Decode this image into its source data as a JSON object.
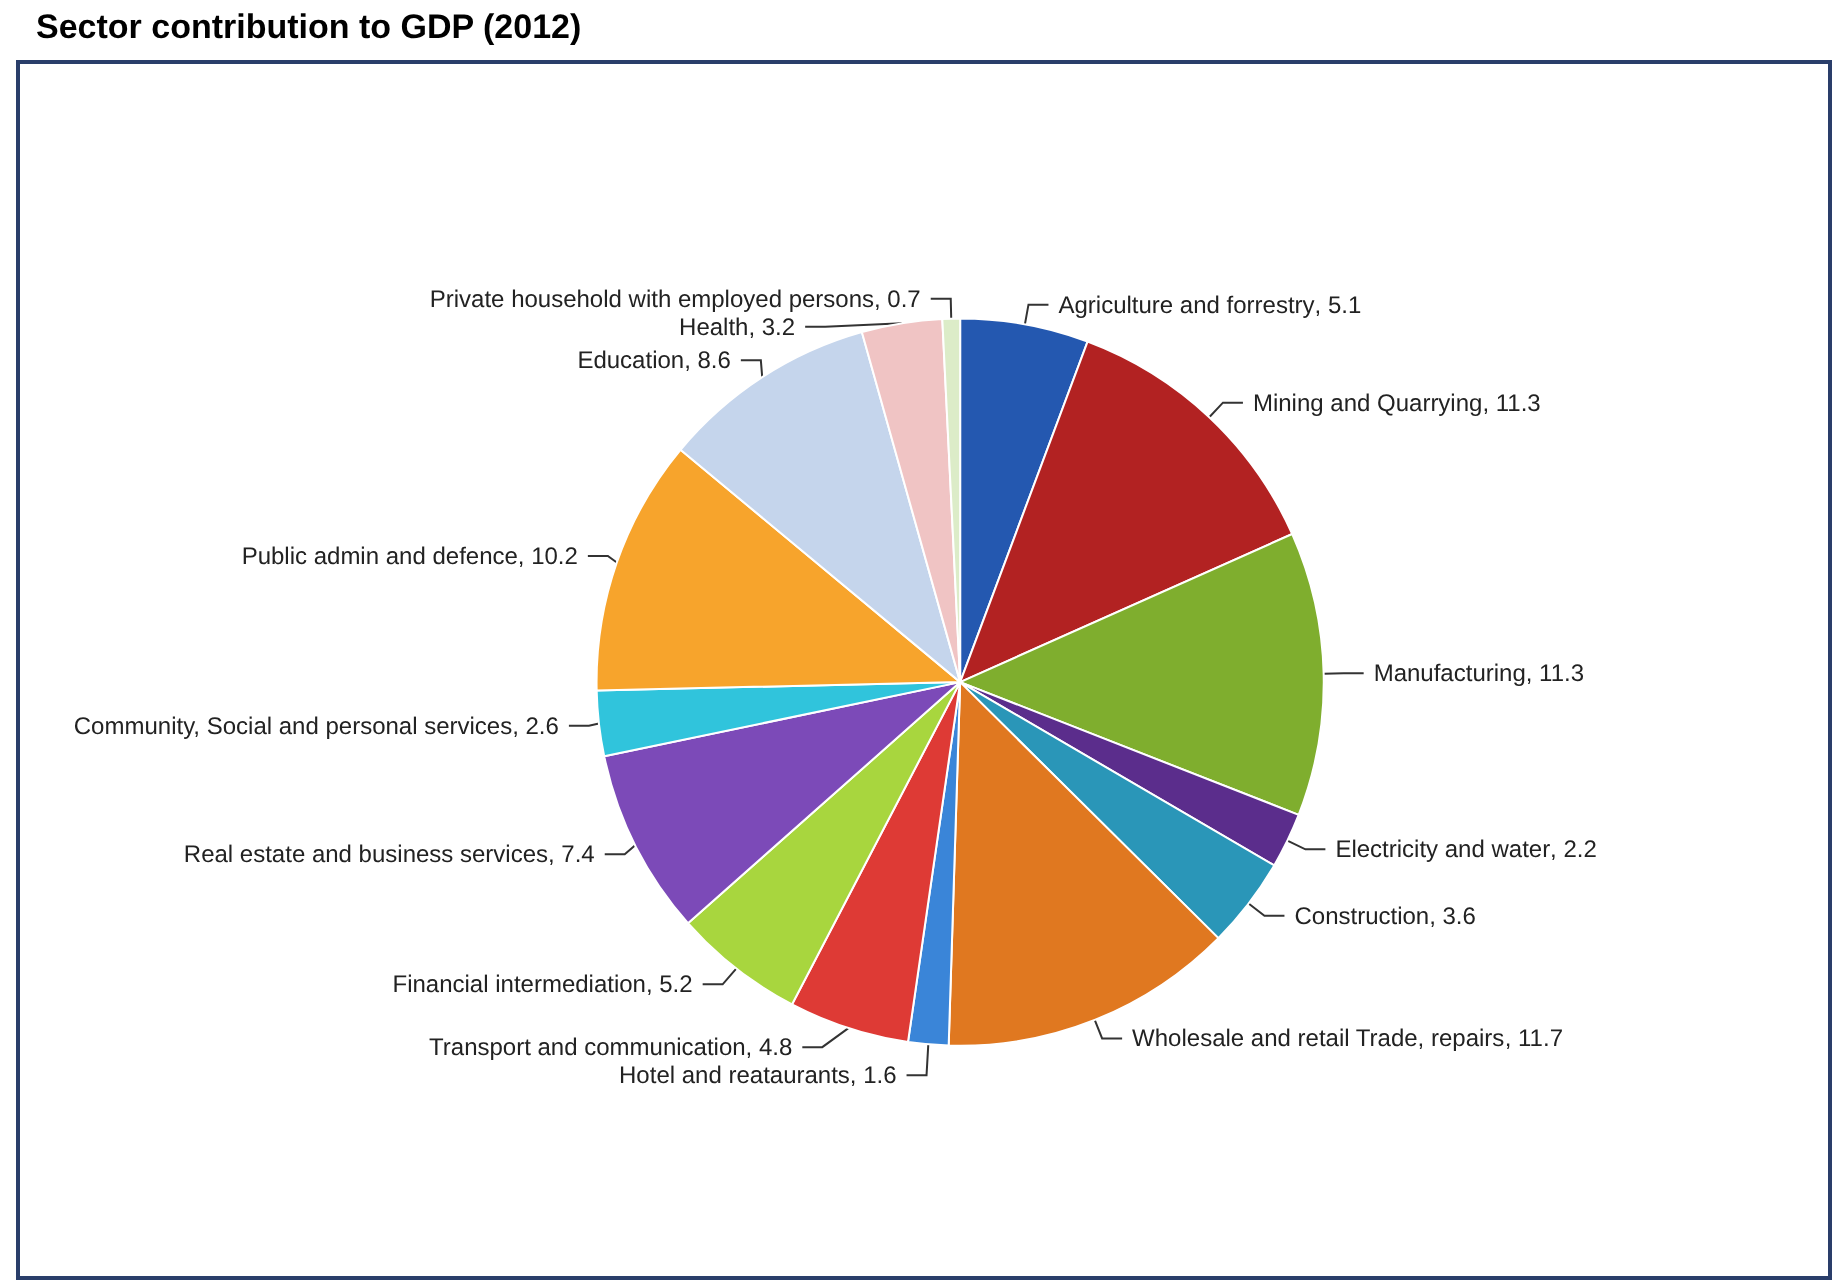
{
  "chart_data": {
    "type": "pie",
    "title": "Sector contribution to GDP (2012)",
    "categories": [
      "Agriculture and forrestry",
      "Mining and Quarrying",
      "Manufacturing",
      "Electricity and water",
      "Construction",
      "Wholesale and retail Trade, repairs",
      "Hotel and reataurants",
      "Transport and communication",
      "Financial intermediation",
      "Real estate and business services",
      "Community, Social and personal services",
      "Public admin and defence",
      "Education",
      "Health",
      "Private household with employed persons"
    ],
    "values": [
      5.1,
      11.3,
      11.3,
      2.2,
      3.6,
      11.7,
      1.6,
      4.8,
      5.2,
      7.4,
      2.6,
      10.2,
      8.6,
      3.2,
      0.7
    ],
    "value_labels": [
      ", 5.1",
      ", 11.3",
      ", 11.3",
      ", 2.2",
      ", 3.6",
      ", 11.7",
      ", 1.6",
      ", 4.8",
      ", 5.2",
      ", 7.4",
      ", 2.6",
      ", 10.2",
      ", 8.6",
      ", 3.2",
      ", 0.7"
    ],
    "colors": [
      "#2458b0",
      "#b22222",
      "#7fae2e",
      "#5b2d8c",
      "#2a96b8",
      "#e07820",
      "#3a85d8",
      "#de3a35",
      "#a8d63e",
      "#7c4ab8",
      "#30c4dc",
      "#f7a42c",
      "#c5d5ec",
      "#f0c4c4",
      "#dcecc8"
    ],
    "legend": false
  }
}
